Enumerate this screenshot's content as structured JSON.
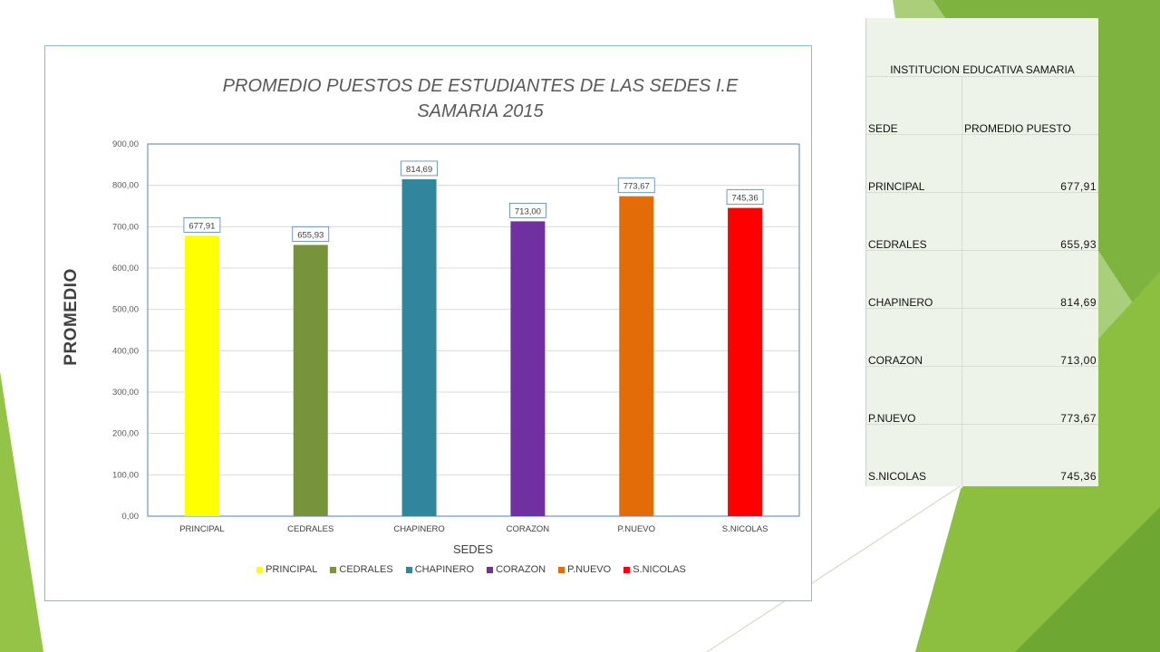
{
  "chart_data": {
    "type": "bar",
    "title": "PROMEDIO PUESTOS DE ESTUDIANTES DE LAS SEDES I.E SAMARIA 2015",
    "xlabel": "SEDES",
    "ylabel": "PROMEDIO",
    "ylim": [
      0,
      900
    ],
    "yticks": [
      "0,00",
      "100,00",
      "200,00",
      "300,00",
      "400,00",
      "500,00",
      "600,00",
      "700,00",
      "800,00",
      "900,00"
    ],
    "categories": [
      "PRINCIPAL",
      "CEDRALES",
      "CHAPINERO",
      "CORAZON",
      "P.NUEVO",
      "S.NICOLAS"
    ],
    "values": [
      677.91,
      655.93,
      814.69,
      713.0,
      773.67,
      745.36
    ],
    "data_labels": [
      "677,91",
      "655,93",
      "814,69",
      "713,00",
      "773,67",
      "745,36"
    ],
    "colors": [
      "#ffff00",
      "#77933c",
      "#31859c",
      "#7030a0",
      "#e36c09",
      "#ff0000"
    ],
    "grid": true,
    "legend": "bottom"
  },
  "table": {
    "title": "INSTITUCION EDUCATIVA SAMARIA",
    "header": [
      "SEDE",
      "PROMEDIO PUESTO"
    ],
    "rows": [
      [
        "PRINCIPAL",
        "677,91"
      ],
      [
        "CEDRALES",
        "655,93"
      ],
      [
        "CHAPINERO",
        "814,69"
      ],
      [
        "CORAZON",
        "713,00"
      ],
      [
        "P.NUEVO",
        "773,67"
      ],
      [
        "S.NICOLAS",
        "745,36"
      ]
    ]
  }
}
